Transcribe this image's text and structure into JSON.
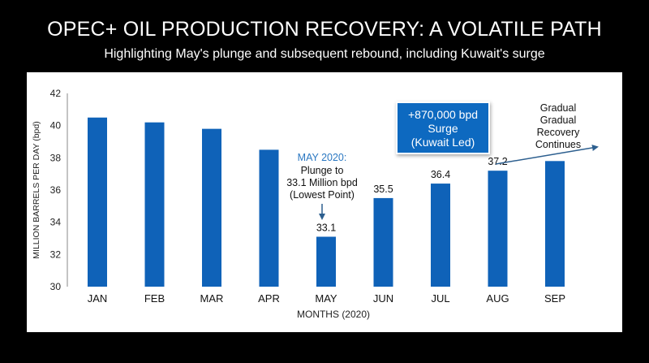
{
  "title": "OPEC+ OIL PRODUCTION RECOVERY: A VOLATILE PATH",
  "subtitle": "Highlighting May's plunge and subsequent rebound, including Kuwait's surge",
  "colors": {
    "bar": "#0f62b8",
    "accent_text": "#2b78c2",
    "callout_bg": "#1069c0",
    "arrow": "#2d5f8f"
  },
  "chart_data": {
    "type": "bar",
    "categories": [
      "JAN",
      "FEB",
      "MAR",
      "APR",
      "MAY",
      "JUN",
      "JUL",
      "AUG",
      "SEP"
    ],
    "values": [
      40.5,
      40.2,
      39.8,
      38.5,
      33.1,
      35.5,
      36.4,
      37.2,
      37.8
    ],
    "data_labels": [
      "",
      "",
      "",
      "",
      "33.1",
      "35.5",
      "36.4",
      "37.2",
      ""
    ],
    "xlabel": "MONTHS (2020)",
    "ylabel": "MILLION BARRELS PER DAY (bpd)",
    "ylim": [
      30,
      42
    ],
    "yticks": [
      30,
      32,
      34,
      36,
      38,
      40,
      42
    ],
    "grid": false,
    "annotations": {
      "may_heading": "MAY 2020:",
      "may_lines": [
        "Plunge to",
        "33.1 Million bpd",
        "(Lowest Point)"
      ],
      "kuwait_lines": [
        "+870,000 bpd",
        "Surge",
        "(Kuwait Led)"
      ],
      "recovery_lines": [
        "Gradual",
        "Gradual",
        "Recovery",
        "Continues"
      ]
    }
  }
}
